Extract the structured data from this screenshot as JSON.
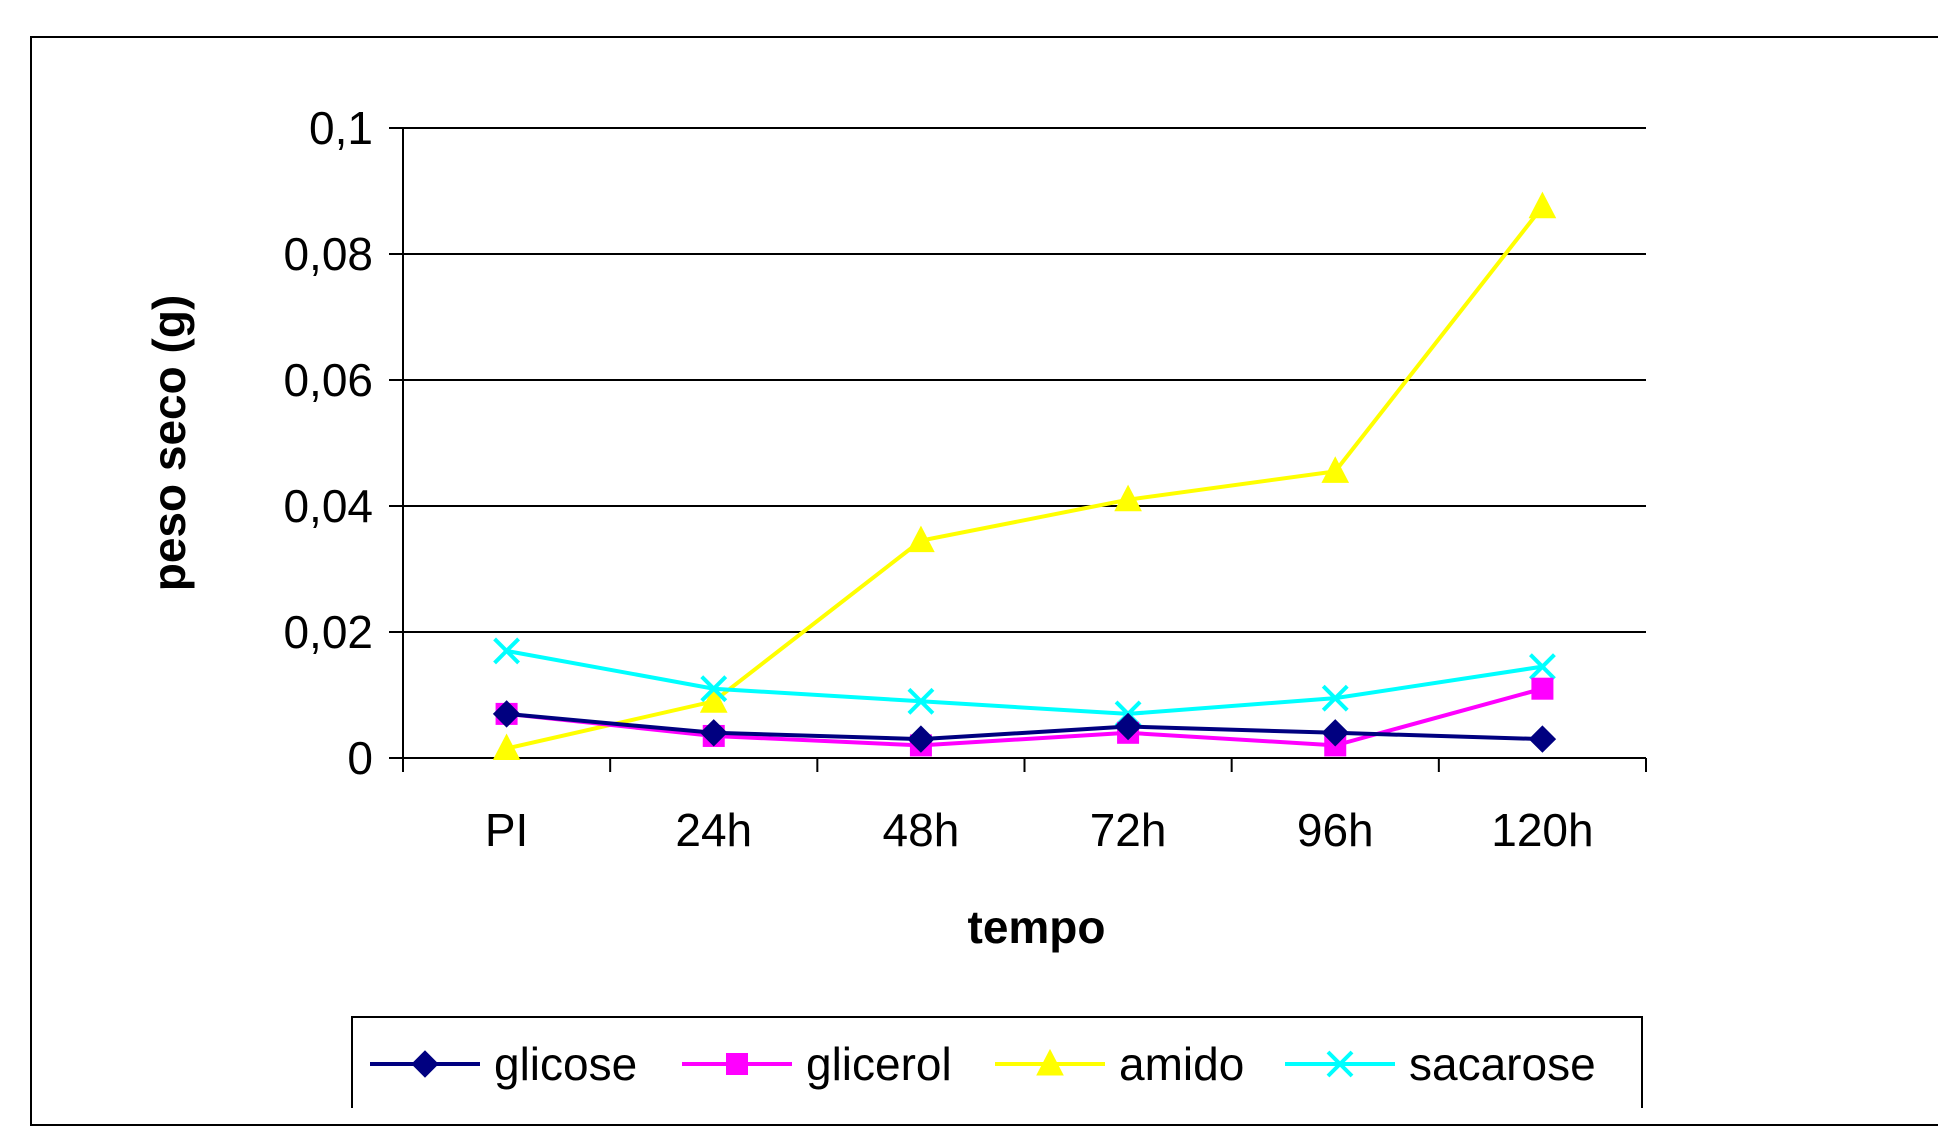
{
  "chart_data": {
    "type": "line",
    "categories": [
      "PI",
      "24h",
      "48h",
      "72h",
      "96h",
      "120h"
    ],
    "xlabel": "tempo",
    "ylabel": "peso seco (g)",
    "ylim": [
      0,
      0.1
    ],
    "yticks": [
      0,
      0.02,
      0.04,
      0.06,
      0.08,
      0.1
    ],
    "ytick_labels": [
      "0",
      "0,02",
      "0,04",
      "0,06",
      "0,08",
      "0,1"
    ],
    "grid": "horizontal",
    "legend_position": "bottom",
    "series": [
      {
        "name": "glicose",
        "values": [
          0.007,
          0.004,
          0.003,
          0.005,
          0.004,
          0.003
        ],
        "color": "#000080",
        "marker": "diamond"
      },
      {
        "name": "glicerol",
        "values": [
          0.007,
          0.0035,
          0.002,
          0.004,
          0.002,
          0.011
        ],
        "color": "#ff00ff",
        "marker": "square"
      },
      {
        "name": "amido",
        "values": [
          0.0015,
          0.009,
          0.0345,
          0.041,
          0.0455,
          0.0875
        ],
        "color": "#ffff00",
        "marker": "triangle"
      },
      {
        "name": "sacarose",
        "values": [
          0.017,
          0.011,
          0.009,
          0.007,
          0.0095,
          0.0145
        ],
        "color": "#00ffff",
        "marker": "x"
      }
    ]
  }
}
